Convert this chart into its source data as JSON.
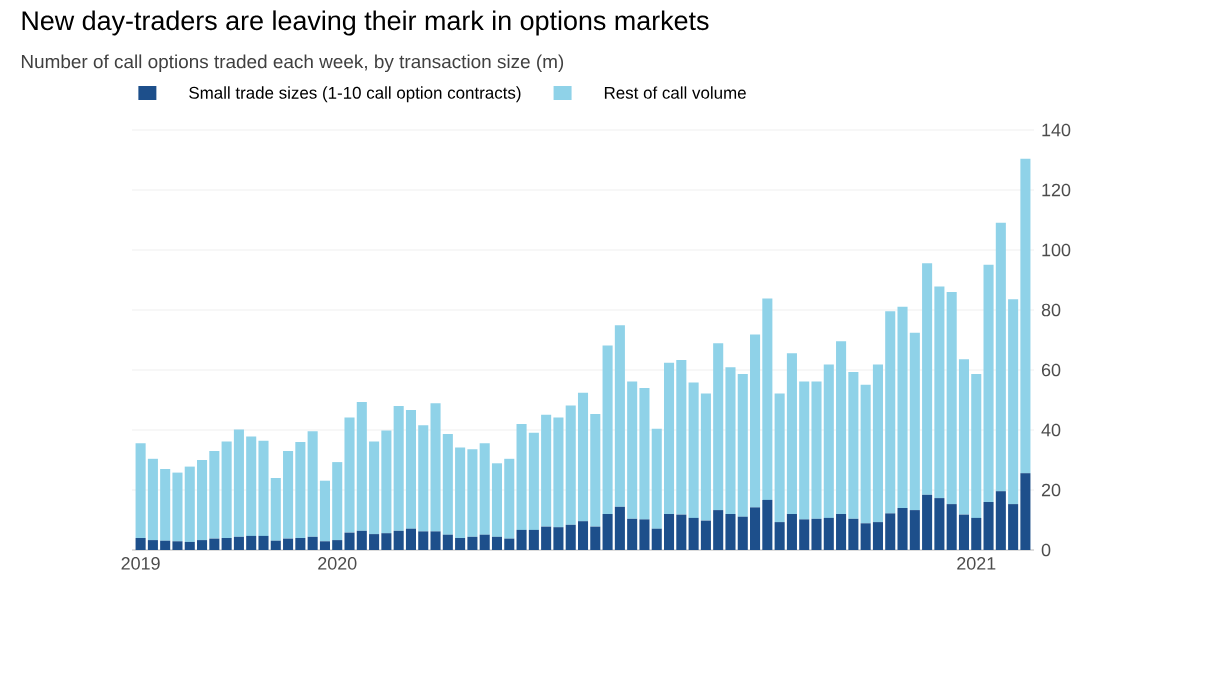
{
  "chart_data": {
    "type": "bar",
    "stacked": true,
    "title": "New day-traders are leaving their mark in options markets",
    "subtitle": "Number of call options traded each week, by transaction size (m)",
    "categories": [
      "2019",
      null,
      null,
      null,
      null,
      null,
      null,
      null,
      null,
      null,
      null,
      null,
      null,
      null,
      null,
      null,
      "2020",
      null,
      null,
      null,
      null,
      null,
      null,
      null,
      null,
      null,
      null,
      null,
      null,
      null,
      null,
      null,
      null,
      null,
      null,
      null,
      null,
      null,
      null,
      null,
      null,
      null,
      null,
      null,
      null,
      null,
      null,
      null,
      null,
      null,
      null,
      null,
      null,
      null,
      null,
      null,
      null,
      null,
      null,
      null,
      null,
      null,
      null,
      null,
      null,
      null,
      null,
      null,
      "2021",
      null,
      null,
      null,
      null
    ],
    "series": [
      {
        "name": "Small trade sizes (1-10 call option contracts)",
        "color": "#1d4f8b",
        "values": [
          4,
          3.3,
          3.1,
          2.9,
          2.7,
          3.3,
          3.8,
          4,
          4.4,
          4.7,
          4.7,
          3.1,
          3.8,
          4,
          4.4,
          2.9,
          3.3,
          5.8,
          6.4,
          5.3,
          5.6,
          6.4,
          7.1,
          6.2,
          6.2,
          5.1,
          4,
          4.4,
          5.1,
          4.4,
          3.8,
          6.7,
          6.7,
          7.8,
          7.6,
          8.4,
          9.6,
          7.8,
          12,
          14.4,
          10.4,
          10.2,
          7.1,
          12,
          11.8,
          10.7,
          9.8,
          13.3,
          12,
          11.1,
          14.2,
          16.7,
          9.3,
          12,
          10.2,
          10.4,
          10.7,
          12,
          10.4,
          8.9,
          9.3,
          12.2,
          14,
          13.3,
          18.4,
          17.3,
          15.3,
          11.8,
          10.7,
          16,
          19.6,
          15.3,
          25.6
        ]
      },
      {
        "name": "Rest of call volume",
        "color": "#8fd2e8",
        "values": [
          31.6,
          27.1,
          23.9,
          22.9,
          25.1,
          26.7,
          29.2,
          32.2,
          35.8,
          33.1,
          31.7,
          20.9,
          29.2,
          32,
          35.2,
          20.2,
          26,
          38.4,
          42.9,
          30.9,
          34.2,
          41.6,
          39.6,
          35.4,
          42.7,
          33.6,
          30.2,
          29.2,
          30.5,
          24.5,
          26.6,
          35.3,
          32.4,
          37.3,
          36.6,
          39.8,
          42.8,
          37.5,
          56.2,
          60.5,
          45.8,
          43.8,
          33.3,
          50.4,
          51.5,
          45.1,
          42.4,
          55.6,
          48.9,
          47.6,
          57.6,
          67.1,
          42.9,
          53.6,
          46,
          45.8,
          51.1,
          57.6,
          48.9,
          46.2,
          52.5,
          67.4,
          67.1,
          59.1,
          77.2,
          70.5,
          70.7,
          51.8,
          48,
          79.1,
          89.5,
          68.3,
          104.8
        ]
      }
    ],
    "ylim": [
      0,
      140
    ],
    "yticks": [
      0,
      20,
      40,
      60,
      80,
      100,
      120,
      140
    ],
    "grid": "y",
    "legend": "top left"
  }
}
